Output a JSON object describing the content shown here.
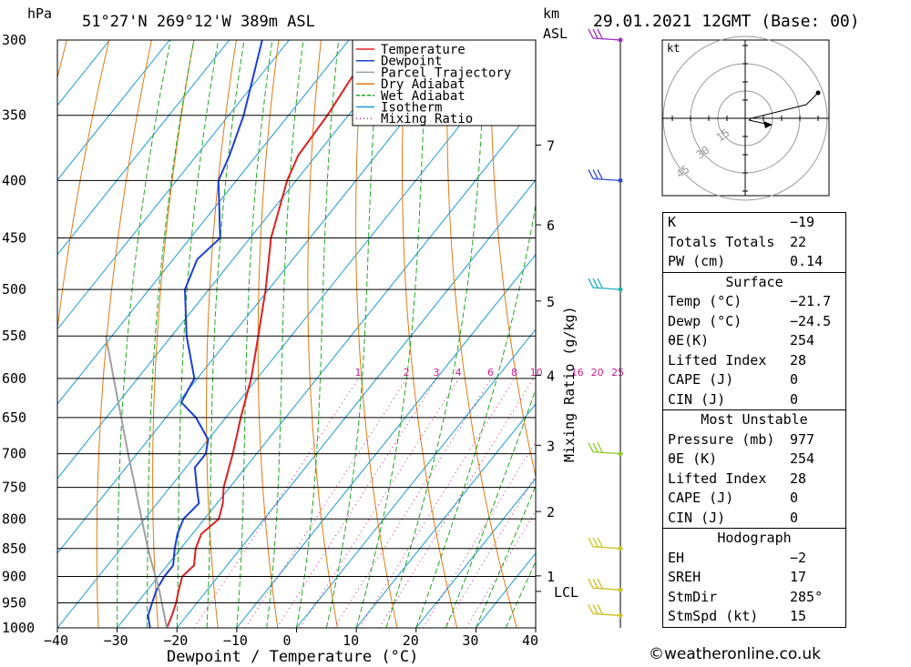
{
  "header": {
    "hpa_label": "hPa",
    "location": "51°27'N  269°12'W  389m  ASL",
    "km_label": "km",
    "asl_label": "ASL",
    "datetime": "29.01.2021  12GMT  (Base: 00)"
  },
  "legend": [
    {
      "label": "Temperature",
      "color": "#e02020",
      "style": "solid"
    },
    {
      "label": "Dewpoint",
      "color": "#1a3fd8",
      "style": "solid"
    },
    {
      "label": "Parcel Trajectory",
      "color": "#a0a0a0",
      "style": "solid"
    },
    {
      "label": "Dry Adiabat",
      "color": "#e07a10",
      "style": "solid"
    },
    {
      "label": "Wet Adiabat",
      "color": "#1fa81f",
      "style": "dashed"
    },
    {
      "label": "Isotherm",
      "color": "#1a9ad8",
      "style": "solid"
    },
    {
      "label": "Mixing Ratio",
      "color": "#d01890",
      "style": "dotted"
    }
  ],
  "chart_data": {
    "type": "line",
    "xlabel": "Dewpoint / Temperature (°C)",
    "ylabel": "hPa",
    "xlim": [
      -40,
      40
    ],
    "ylim": [
      1000,
      300
    ],
    "pressure_ticks": [
      300,
      350,
      400,
      450,
      500,
      550,
      600,
      650,
      700,
      750,
      800,
      850,
      900,
      950,
      1000
    ],
    "temperature_ticks": [
      "-40",
      "-30",
      "-20",
      "-10",
      "0",
      "10",
      "20",
      "30",
      "40"
    ],
    "height_km_ticks": [
      {
        "km": "1",
        "p": 899
      },
      {
        "km": "2",
        "p": 788
      },
      {
        "km": "3",
        "p": 688
      },
      {
        "km": "4",
        "p": 596
      },
      {
        "km": "5",
        "p": 512
      },
      {
        "km": "6",
        "p": 438
      },
      {
        "km": "7",
        "p": 372
      }
    ],
    "lcl": {
      "label": "LCL",
      "p": 928
    },
    "mixing_ratio_label": "Mixing Ratio (g/kg)",
    "mixing_ratio_lines": [
      "1",
      "2",
      "3",
      "4",
      "6",
      "8",
      "10",
      "16",
      "20",
      "25"
    ],
    "series": [
      {
        "name": "Temperature",
        "points": [
          [
            1000,
            -21.7
          ],
          [
            975,
            -22.5
          ],
          [
            950,
            -23.5
          ],
          [
            925,
            -24.8
          ],
          [
            900,
            -26.0
          ],
          [
            880,
            -25.5
          ],
          [
            850,
            -27.5
          ],
          [
            825,
            -28.5
          ],
          [
            800,
            -27.6
          ],
          [
            775,
            -29.0
          ],
          [
            750,
            -31.0
          ],
          [
            700,
            -34.0
          ],
          [
            650,
            -37.5
          ],
          [
            600,
            -41.0
          ],
          [
            550,
            -45.5
          ],
          [
            500,
            -50.5
          ],
          [
            450,
            -56.5
          ],
          [
            400,
            -61.5
          ],
          [
            380,
            -63.0
          ],
          [
            350,
            -63.5
          ],
          [
            300,
            -65.5
          ]
        ]
      },
      {
        "name": "Dewpoint",
        "points": [
          [
            1000,
            -24.5
          ],
          [
            975,
            -26.5
          ],
          [
            950,
            -27.5
          ],
          [
            925,
            -28.5
          ],
          [
            900,
            -29.0
          ],
          [
            880,
            -29.0
          ],
          [
            850,
            -31.0
          ],
          [
            825,
            -32.5
          ],
          [
            800,
            -33.5
          ],
          [
            775,
            -33.0
          ],
          [
            750,
            -35.5
          ],
          [
            720,
            -38.5
          ],
          [
            700,
            -38.5
          ],
          [
            680,
            -40.0
          ],
          [
            650,
            -45.0
          ],
          [
            630,
            -49.5
          ],
          [
            600,
            -50.5
          ],
          [
            550,
            -57.5
          ],
          [
            500,
            -64.0
          ],
          [
            470,
            -66.0
          ],
          [
            450,
            -65.0
          ],
          [
            400,
            -73.0
          ],
          [
            380,
            -74.5
          ],
          [
            350,
            -77.5
          ],
          [
            300,
            -84.5
          ]
        ]
      },
      {
        "name": "Parcel Trajectory",
        "points": [
          [
            1000,
            -21.7
          ],
          [
            928,
            -27.8
          ],
          [
            900,
            -30.5
          ],
          [
            850,
            -35.5
          ],
          [
            800,
            -40.5
          ],
          [
            750,
            -45.8
          ],
          [
            700,
            -51.5
          ],
          [
            650,
            -57.5
          ],
          [
            600,
            -64.0
          ],
          [
            550,
            -71.0
          ]
        ]
      }
    ],
    "wind_barbs": [
      {
        "p": 300,
        "color": "#9b2ac8"
      },
      {
        "p": 400,
        "color": "#2a4ad8"
      },
      {
        "p": 500,
        "color": "#20b0c0"
      },
      {
        "p": 700,
        "color": "#88cc22"
      },
      {
        "p": 850,
        "color": "#c8c822"
      },
      {
        "p": 925,
        "color": "#d0c020"
      },
      {
        "p": 975,
        "color": "#d0c020"
      }
    ],
    "hodograph": {
      "unit_label": "kt",
      "ring_labels": [
        "15",
        "30",
        "45"
      ]
    }
  },
  "indices": {
    "general": [
      {
        "label": "K",
        "value": "-19"
      },
      {
        "label": "Totals Totals",
        "value": "22"
      },
      {
        "label": "PW (cm)",
        "value": "0.14"
      }
    ],
    "surface_title": "Surface",
    "surface": [
      {
        "label": "Temp (°C)",
        "value": "-21.7"
      },
      {
        "label": "Dewp (°C)",
        "value": "-24.5"
      },
      {
        "label": "θE(K)",
        "value": "254"
      },
      {
        "label": "Lifted Index",
        "value": "28"
      },
      {
        "label": "CAPE (J)",
        "value": "0"
      },
      {
        "label": "CIN (J)",
        "value": "0"
      }
    ],
    "most_unstable_title": "Most Unstable",
    "most_unstable": [
      {
        "label": "Pressure (mb)",
        "value": "977"
      },
      {
        "label": "θE (K)",
        "value": "254"
      },
      {
        "label": "Lifted Index",
        "value": "28"
      },
      {
        "label": "CAPE (J)",
        "value": "0"
      },
      {
        "label": "CIN (J)",
        "value": "0"
      }
    ],
    "hodograph_title": "Hodograph",
    "hodograph": [
      {
        "label": "EH",
        "value": "-2"
      },
      {
        "label": "SREH",
        "value": "17"
      },
      {
        "label": "StmDir",
        "value": "285°"
      },
      {
        "label": "StmSpd (kt)",
        "value": "15"
      }
    ]
  },
  "credit": "©weatheronline.co.uk"
}
